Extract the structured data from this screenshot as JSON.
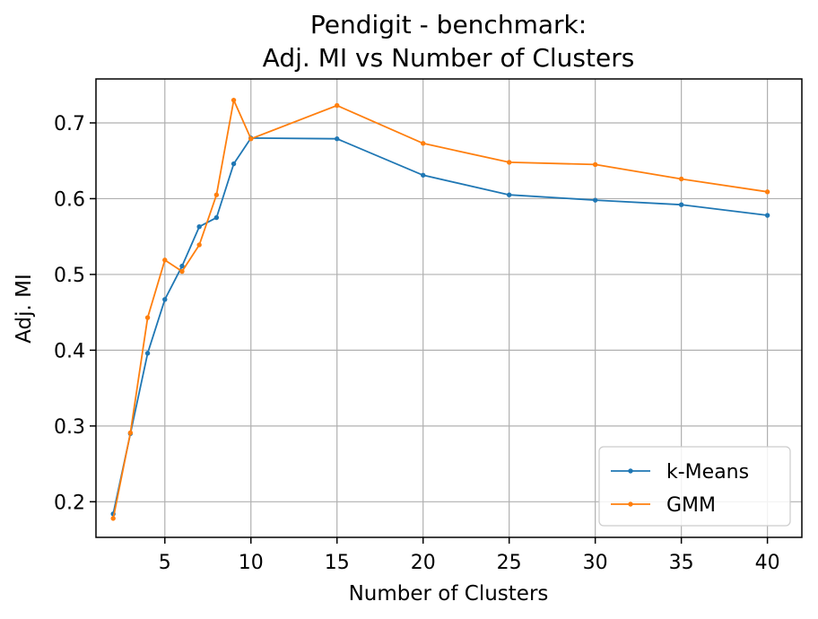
{
  "chart_data": {
    "type": "line",
    "title": "Pendigit - benchmark:\nAdj. MI vs Number of Clusters",
    "title_lines": [
      "Pendigit - benchmark:",
      "Adj. MI vs Number of Clusters"
    ],
    "xlabel": "Number of Clusters",
    "ylabel": "Adj. MI",
    "xlim": [
      1,
      42
    ],
    "ylim": [
      0.153,
      0.758
    ],
    "xticks": [
      5,
      10,
      15,
      20,
      25,
      30,
      35,
      40
    ],
    "yticks": [
      0.2,
      0.3,
      0.4,
      0.5,
      0.6,
      0.7
    ],
    "grid": true,
    "legend_position": "bottom-right",
    "x": [
      2,
      3,
      4,
      5,
      6,
      7,
      8,
      9,
      10,
      15,
      20,
      25,
      30,
      35,
      40
    ],
    "series": [
      {
        "name": "k-Means",
        "color": "#1f77b4",
        "values": [
          0.184,
          0.29,
          0.396,
          0.467,
          0.511,
          0.563,
          0.575,
          0.646,
          0.68,
          0.679,
          0.631,
          0.605,
          0.598,
          0.592,
          0.578
        ]
      },
      {
        "name": "GMM",
        "color": "#ff7f0e",
        "values": [
          0.178,
          0.291,
          0.443,
          0.519,
          0.504,
          0.539,
          0.605,
          0.73,
          0.679,
          0.723,
          0.673,
          0.648,
          0.645,
          0.626,
          0.609
        ]
      }
    ]
  }
}
